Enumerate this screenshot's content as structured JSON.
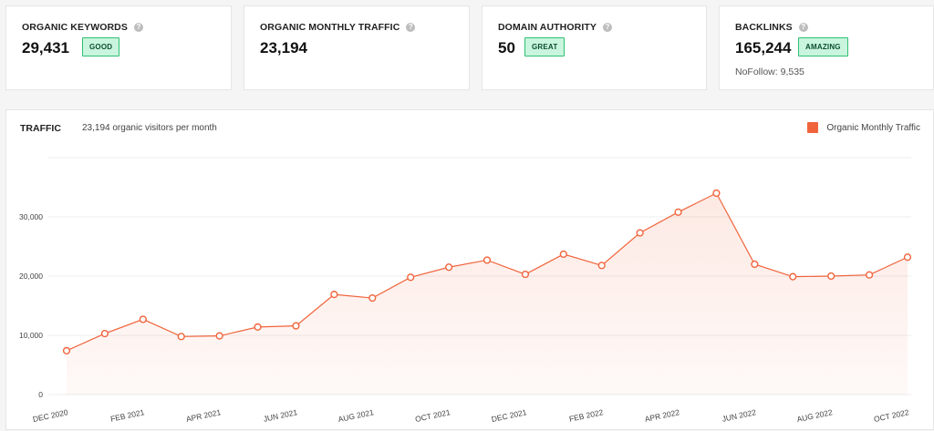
{
  "cards": [
    {
      "label": "ORGANIC KEYWORDS",
      "value": "29,431",
      "badge": "GOOD"
    },
    {
      "label": "ORGANIC MONTHLY TRAFFIC",
      "value": "23,194"
    },
    {
      "label": "DOMAIN AUTHORITY",
      "value": "50",
      "badge": "GREAT"
    },
    {
      "label": "BACKLINKS",
      "value": "165,244",
      "badge": "AMAZING",
      "nofollow": "NoFollow: 9,535"
    }
  ],
  "help_glyph": "?",
  "traffic": {
    "title": "TRAFFIC",
    "subtitle": "23,194 organic visitors per month",
    "legend": "Organic Monthly Traffic"
  },
  "colors": {
    "accent": "#f0643c",
    "badge_bg": "#c9f5df",
    "badge_border": "#2fbf71"
  },
  "chart_data": {
    "type": "area",
    "series": [
      {
        "name": "Organic Monthly Traffic",
        "values": [
          7400,
          10300,
          12700,
          9800,
          9900,
          11400,
          11600,
          16900,
          16300,
          19800,
          21500,
          22700,
          20300,
          23700,
          21800,
          27300,
          30800,
          34000,
          22000,
          19900,
          20000,
          20200,
          23194
        ]
      }
    ],
    "x": [
      "DEC 2020",
      "JAN 2021",
      "FEB 2021",
      "MAR 2021",
      "APR 2021",
      "MAY 2021",
      "JUN 2021",
      "JUL 2021",
      "AUG 2021",
      "SEP 2021",
      "OCT 2021",
      "NOV 2021",
      "DEC 2021",
      "JAN 2022",
      "FEB 2022",
      "MAR 2022",
      "APR 2022",
      "MAY 2022",
      "JUN 2022",
      "JUL 2022",
      "AUG 2022",
      "SEP 2022",
      "OCT 2022"
    ],
    "x_tick_labels": [
      "DEC 2020",
      "FEB 2021",
      "APR 2021",
      "JUN 2021",
      "AUG 2021",
      "OCT 2021",
      "DEC 2021",
      "FEB 2022",
      "APR 2022",
      "JUN 2022",
      "AUG 2022",
      "OCT 2022"
    ],
    "y_ticks": [
      "0",
      "10,000",
      "20,000",
      "30,000"
    ],
    "ylim": [
      0,
      40000
    ],
    "grid": true
  }
}
